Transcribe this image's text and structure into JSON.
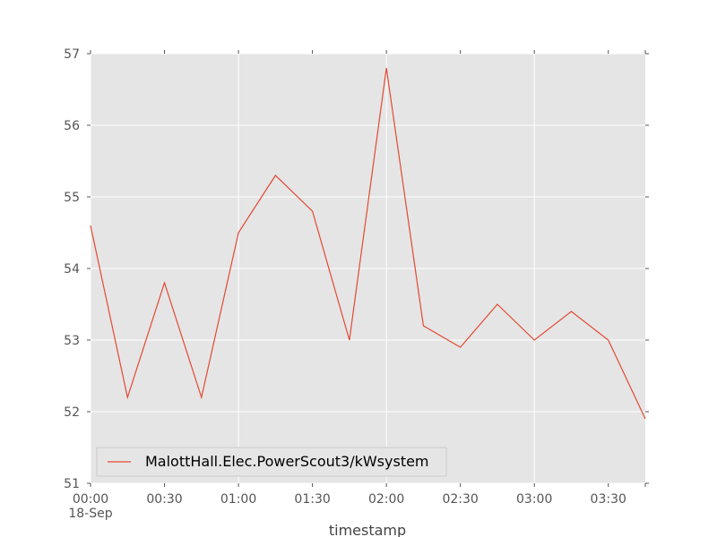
{
  "chart_data": {
    "type": "line",
    "title": "",
    "xlabel": "timestamp",
    "ylabel": "",
    "x": [
      "00:00",
      "00:15",
      "00:30",
      "00:45",
      "01:00",
      "01:15",
      "01:30",
      "01:45",
      "02:00",
      "02:15",
      "02:30",
      "02:45",
      "03:00",
      "03:15",
      "03:30",
      "03:45"
    ],
    "series": [
      {
        "name": "MalottHall.Elec.PowerScout3/kWsystem",
        "color": "#e24a33",
        "values": [
          54.6,
          52.2,
          53.8,
          52.2,
          54.5,
          55.3,
          54.8,
          53.0,
          56.8,
          53.2,
          52.9,
          53.5,
          53.0,
          53.4,
          53.0,
          51.9
        ]
      }
    ],
    "x_tick_labels": [
      "00:00",
      "00:30",
      "01:00",
      "01:30",
      "02:00",
      "02:30",
      "03:00",
      "03:30"
    ],
    "x_date_label": "18-Sep",
    "y_tick_labels": [
      "51",
      "52",
      "53",
      "54",
      "55",
      "56",
      "57"
    ],
    "ylim": [
      51,
      57
    ],
    "grid": true,
    "legend_position": "lower-left",
    "background_color": "#e5e5e5"
  }
}
